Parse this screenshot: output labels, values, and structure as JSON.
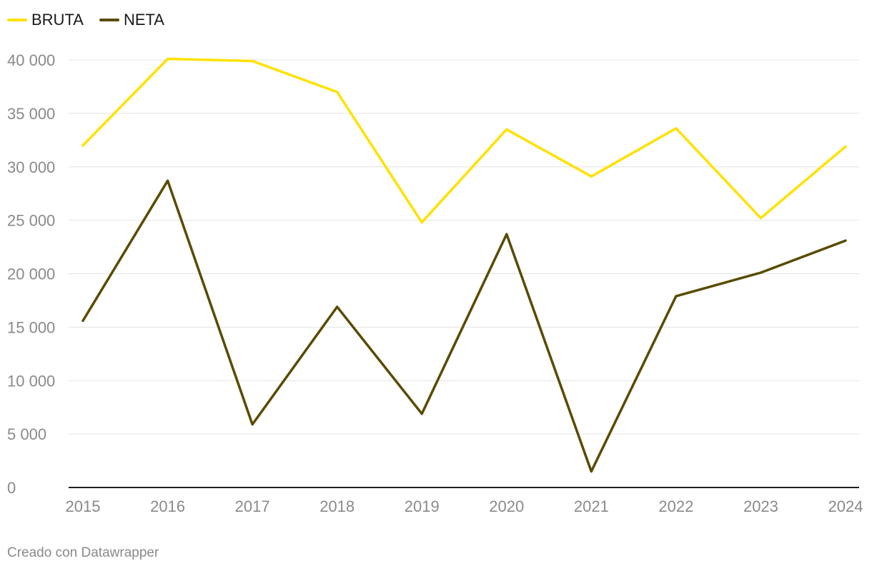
{
  "chart_data": {
    "type": "line",
    "x": [
      "2015",
      "2016",
      "2017",
      "2018",
      "2019",
      "2020",
      "2021",
      "2022",
      "2023",
      "2024"
    ],
    "series": [
      {
        "name": "BRUTA",
        "color": "#ffe100",
        "values": [
          32000,
          40100,
          39900,
          37000,
          24800,
          33500,
          29100,
          33600,
          25200,
          31900
        ]
      },
      {
        "name": "NETA",
        "color": "#594b00",
        "values": [
          15600,
          28700,
          5900,
          16900,
          6900,
          23700,
          1500,
          17900,
          20100,
          23100
        ]
      }
    ],
    "yticks": [
      "0",
      "5 000",
      "10 000",
      "15 000",
      "20 000",
      "25 000",
      "30 000",
      "35 000",
      "40 000"
    ],
    "ylim": [
      0,
      40000
    ],
    "grid": true,
    "legend_position": "top-left"
  },
  "footer": {
    "credit": "Creado con Datawrapper"
  }
}
